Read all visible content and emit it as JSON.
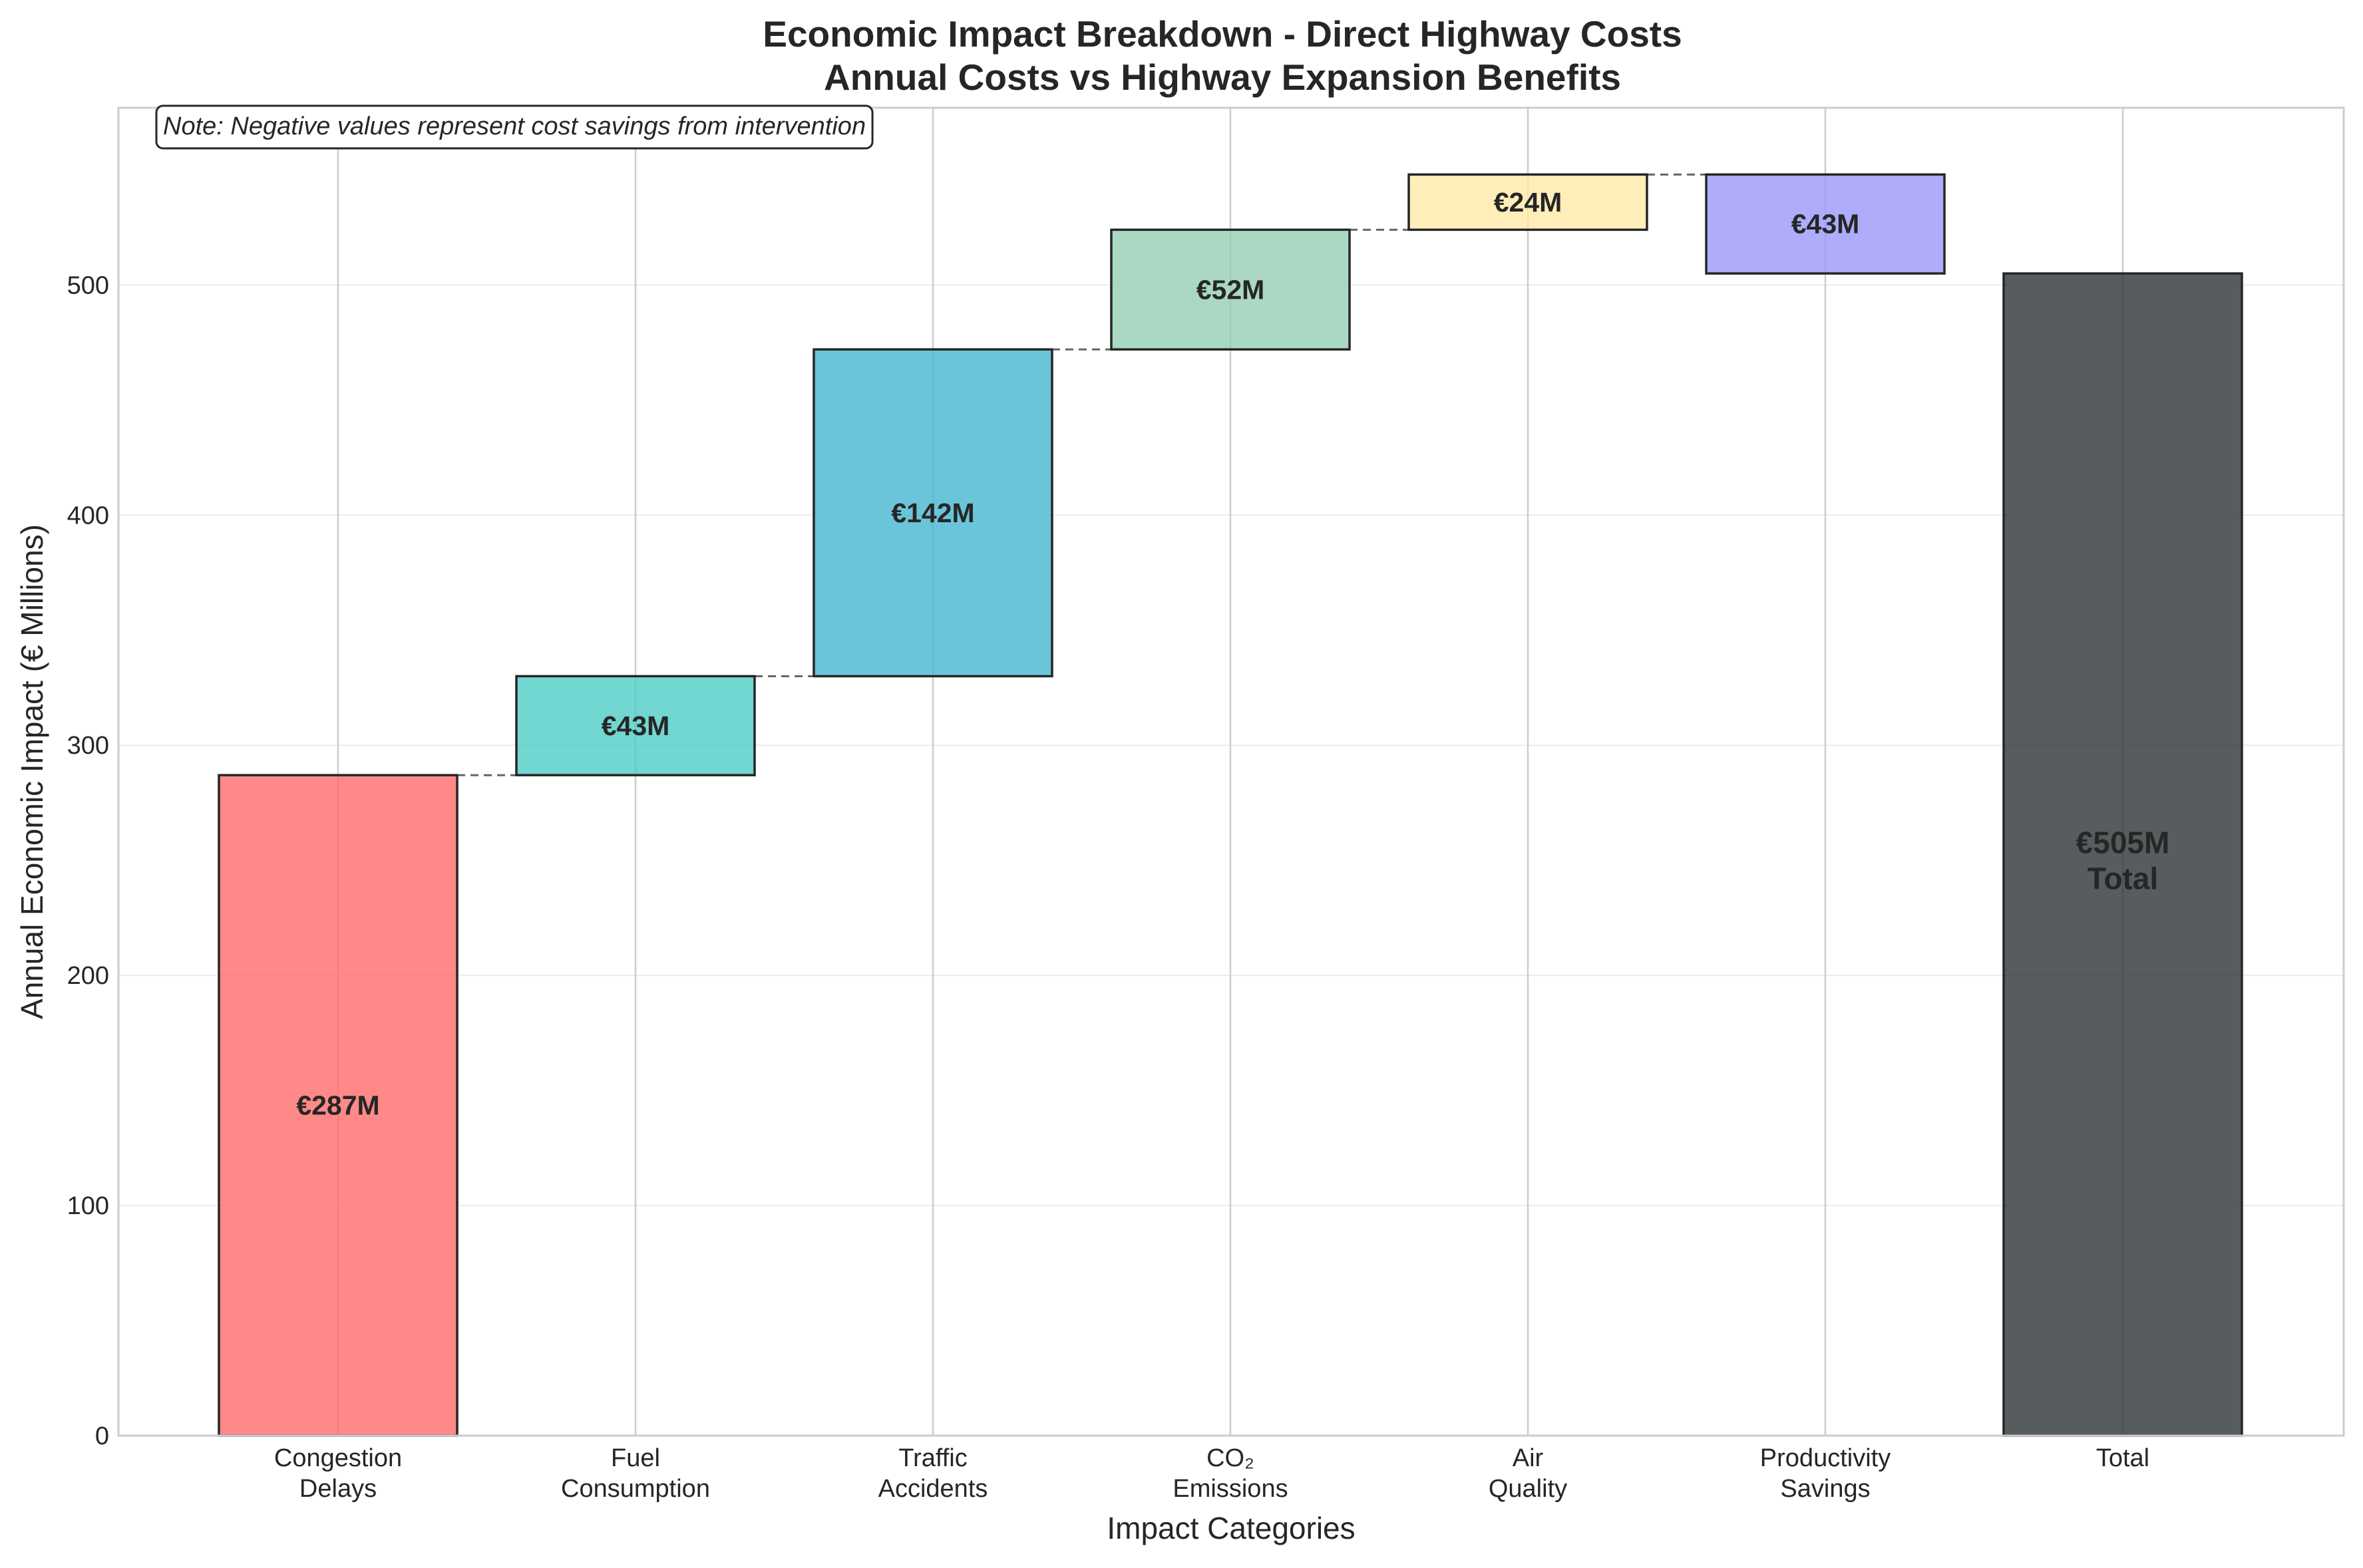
{
  "chart_data": {
    "type": "waterfall",
    "title": "Economic Impact Breakdown - Direct Highway Costs",
    "subtitle": "Annual Costs vs Highway Expansion Benefits",
    "xlabel": "Impact Categories",
    "ylabel": "Annual Economic Impact (€ Millions)",
    "ylim": [
      0,
      577
    ],
    "yticks": [
      0,
      100,
      200,
      300,
      400,
      500
    ],
    "grid": true,
    "note": "Note: Negative values represent cost savings from intervention",
    "categories": [
      [
        "Congestion",
        "Delays"
      ],
      [
        "Fuel",
        "Consumption"
      ],
      [
        "Traffic",
        "Accidents"
      ],
      [
        "CO₂",
        "Emissions"
      ],
      [
        "Air",
        "Quality"
      ],
      [
        "Productivity",
        "Savings"
      ],
      [
        "Total"
      ]
    ],
    "values": [
      287,
      43,
      142,
      52,
      24,
      -43,
      505
    ],
    "labels": [
      "€287M",
      "€43M",
      "€142M",
      "€52M",
      "€24M",
      "€43M",
      "€505M"
    ],
    "total_suffix": "Total",
    "colors": [
      "#ff6b6b",
      "#4ecdc4",
      "#45b7d1",
      "#96ceb4",
      "#ffeaa7",
      "#9b97fb",
      "#2d3436"
    ]
  }
}
